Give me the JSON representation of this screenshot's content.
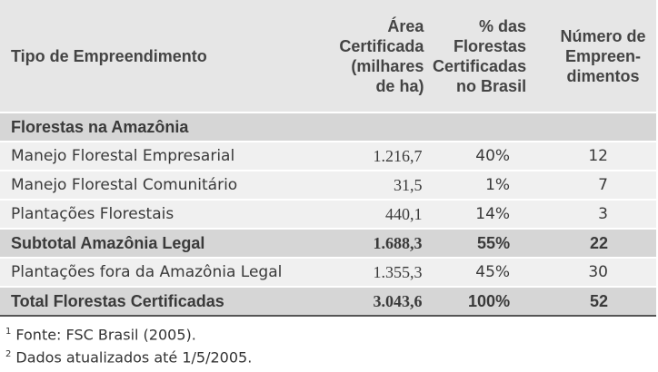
{
  "header": {
    "columns": [
      [
        "Tipo de Empreendimento"
      ],
      [
        "Área",
        "Certificada",
        "(milhares",
        "de ha)"
      ],
      [
        "% das",
        "Florestas",
        "Certificadas",
        "no Brasil"
      ],
      [
        "Número de",
        "Empreen-",
        "dimentos"
      ]
    ]
  },
  "table": {
    "rows": [
      {
        "style": "section",
        "cells": [
          "Florestas na Amazônia"
        ]
      },
      {
        "style": "normal",
        "cells": [
          "Manejo Florestal Empresarial",
          "1.216,7",
          "40%",
          "12"
        ]
      },
      {
        "style": "normal",
        "cells": [
          "Manejo Florestal Comunitário",
          "31,5",
          "1%",
          "7"
        ]
      },
      {
        "style": "normal",
        "cells": [
          "Plantações Florestais",
          "440,1",
          "14%",
          "3"
        ]
      },
      {
        "style": "subtotal",
        "cells": [
          "Subtotal  Amazônia Legal",
          "1.688,3",
          "55%",
          "22"
        ]
      },
      {
        "style": "normal",
        "cells": [
          "Plantações fora da Amazônia Legal",
          "1.355,3",
          "45%",
          "30"
        ]
      },
      {
        "style": "total",
        "cells": [
          "Total  Florestas Certificadas",
          "3.043,6",
          "100%",
          "52"
        ]
      }
    ]
  },
  "footnotes": [
    {
      "mark": "1",
      "text": "Fonte: FSC Brasil (2005)."
    },
    {
      "mark": "2",
      "text": "Dados atualizados até 1/5/2005."
    }
  ]
}
